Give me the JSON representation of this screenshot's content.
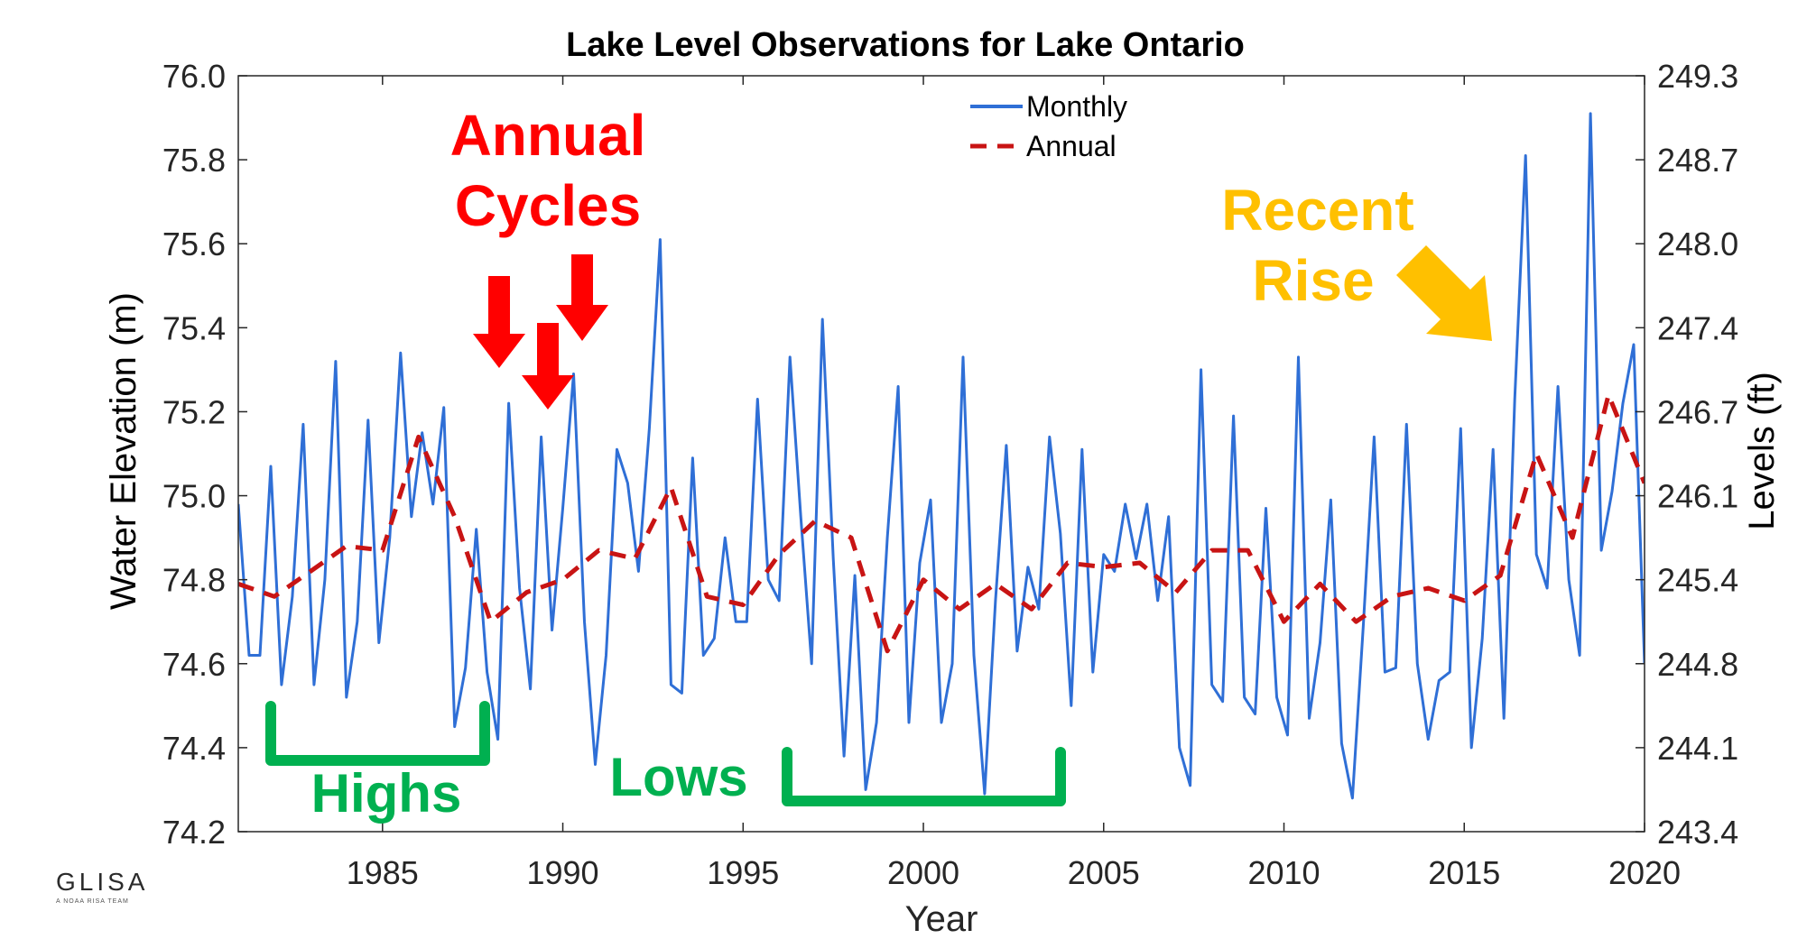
{
  "chart_data": {
    "type": "line",
    "title": "Lake Level Observations for Lake Ontario",
    "xlabel": "Year",
    "ylabel": "Water Elevation (m)",
    "y2label": "Levels (ft)",
    "xlim": [
      1981,
      2020
    ],
    "ylim": [
      74.2,
      76.0
    ],
    "xticks": [
      1985,
      1990,
      1995,
      2000,
      2005,
      2010,
      2015,
      2020
    ],
    "yticks": [
      "74.2",
      "74.4",
      "74.6",
      "74.8",
      "75.0",
      "75.2",
      "75.4",
      "75.6",
      "75.8",
      "76.0"
    ],
    "y2ticks": [
      "243.4",
      "244.1",
      "244.8",
      "245.4",
      "246.1",
      "246.7",
      "247.4",
      "248.0",
      "248.7",
      "249.3"
    ],
    "grid": false,
    "legend_position": "top-center",
    "series": [
      {
        "name": "Monthly",
        "style": "solid",
        "color": "#2f6fd6",
        "x": [
          1981.0,
          1981.3,
          1981.6,
          1981.9,
          1982.2,
          1982.5,
          1982.8,
          1983.1,
          1983.4,
          1983.7,
          1984.0,
          1984.3,
          1984.6,
          1984.9,
          1985.2,
          1985.5,
          1985.8,
          1986.1,
          1986.4,
          1986.7,
          1987.0,
          1987.3,
          1987.6,
          1987.9,
          1988.2,
          1988.5,
          1988.8,
          1989.1,
          1989.4,
          1989.7,
          1990.0,
          1990.3,
          1990.6,
          1990.9,
          1991.2,
          1991.5,
          1991.8,
          1992.1,
          1992.4,
          1992.7,
          1993.0,
          1993.3,
          1993.6,
          1993.9,
          1994.2,
          1994.5,
          1994.8,
          1995.1,
          1995.4,
          1995.7,
          1996.0,
          1996.3,
          1996.6,
          1996.9,
          1997.2,
          1997.5,
          1997.8,
          1998.1,
          1998.4,
          1998.7,
          1999.0,
          1999.3,
          1999.6,
          1999.9,
          2000.2,
          2000.5,
          2000.8,
          2001.1,
          2001.4,
          2001.7,
          2002.0,
          2002.3,
          2002.6,
          2002.9,
          2003.2,
          2003.5,
          2003.8,
          2004.1,
          2004.4,
          2004.7,
          2005.0,
          2005.3,
          2005.6,
          2005.9,
          2006.2,
          2006.5,
          2006.8,
          2007.1,
          2007.4,
          2007.7,
          2008.0,
          2008.3,
          2008.6,
          2008.9,
          2009.2,
          2009.5,
          2009.8,
          2010.1,
          2010.4,
          2010.7,
          2011.0,
          2011.3,
          2011.6,
          2011.9,
          2012.2,
          2012.5,
          2012.8,
          2013.1,
          2013.4,
          2013.7,
          2014.0,
          2014.3,
          2014.6,
          2014.9,
          2015.2,
          2015.5,
          2015.8,
          2016.1,
          2016.4,
          2016.7,
          2017.0,
          2017.3,
          2017.6,
          2017.9,
          2018.2,
          2018.5,
          2018.8,
          2019.1,
          2019.4,
          2019.7,
          2020.0
        ],
        "values": [
          74.98,
          74.62,
          74.62,
          75.07,
          74.55,
          74.76,
          75.17,
          74.55,
          74.8,
          75.32,
          74.52,
          74.7,
          75.18,
          74.65,
          74.9,
          75.34,
          74.95,
          75.15,
          74.98,
          75.21,
          74.45,
          74.59,
          74.92,
          74.58,
          74.42,
          75.22,
          74.78,
          74.54,
          75.14,
          74.68,
          74.97,
          75.29,
          74.7,
          74.36,
          74.62,
          75.11,
          75.03,
          74.82,
          75.16,
          75.61,
          74.55,
          74.53,
          75.09,
          74.62,
          74.66,
          74.9,
          74.7,
          74.7,
          75.23,
          74.8,
          74.75,
          75.33,
          74.95,
          74.6,
          75.42,
          74.85,
          74.38,
          74.81,
          74.3,
          74.46,
          74.9,
          75.26,
          74.46,
          74.84,
          74.99,
          74.46,
          74.6,
          75.33,
          74.62,
          74.29,
          74.75,
          75.12,
          74.63,
          74.83,
          74.73,
          75.14,
          74.91,
          74.5,
          75.11,
          74.58,
          74.86,
          74.82,
          74.98,
          74.85,
          74.98,
          74.75,
          74.95,
          74.4,
          74.31,
          75.3,
          74.55,
          74.51,
          75.19,
          74.52,
          74.48,
          74.97,
          74.52,
          74.43,
          75.33,
          74.47,
          74.65,
          74.99,
          74.41,
          74.28,
          74.69,
          75.14,
          74.58,
          74.59,
          75.17,
          74.6,
          74.42,
          74.56,
          74.58,
          75.16,
          74.4,
          74.66,
          75.11,
          74.47,
          75.23,
          75.81,
          74.86,
          74.78,
          75.26,
          74.8,
          74.62,
          75.91,
          74.87,
          75.01,
          75.22,
          75.36,
          74.6
        ]
      },
      {
        "name": "Annual",
        "style": "dashed",
        "color": "#c81414",
        "x": [
          1981,
          1982,
          1983,
          1984,
          1985,
          1986,
          1987,
          1988,
          1989,
          1990,
          1991,
          1992,
          1993,
          1994,
          1995,
          1996,
          1997,
          1998,
          1999,
          2000,
          2001,
          2002,
          2003,
          2004,
          2005,
          2006,
          2007,
          2008,
          2009,
          2010,
          2011,
          2012,
          2013,
          2014,
          2015,
          2016,
          2017,
          2018,
          2019,
          2020
        ],
        "values": [
          74.79,
          74.76,
          74.82,
          74.88,
          74.87,
          75.14,
          74.95,
          74.7,
          74.77,
          74.8,
          74.87,
          74.85,
          75.02,
          74.76,
          74.74,
          74.86,
          74.94,
          74.9,
          74.63,
          74.8,
          74.73,
          74.79,
          74.73,
          74.84,
          74.83,
          74.84,
          74.77,
          74.87,
          74.87,
          74.7,
          74.79,
          74.7,
          74.76,
          74.78,
          74.75,
          74.81,
          75.1,
          74.9,
          75.24,
          75.03
        ]
      }
    ],
    "annotations": [
      {
        "text": "Annual",
        "color": "#ff0000"
      },
      {
        "text": "Cycles",
        "color": "#ff0000"
      },
      {
        "text": "Recent",
        "color": "#ffc000"
      },
      {
        "text": "Rise",
        "color": "#ffc000"
      },
      {
        "text": "Highs",
        "color": "#00b050"
      },
      {
        "text": "Lows",
        "color": "#00b050"
      }
    ]
  },
  "logo": {
    "name": "GLISA",
    "tagline": "A NOAA RISA TEAM"
  }
}
